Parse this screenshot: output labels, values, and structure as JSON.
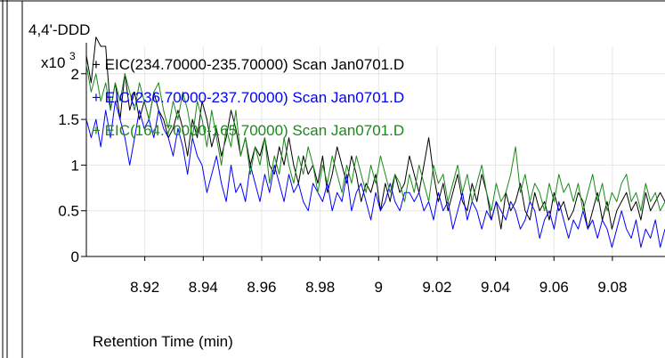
{
  "chart_data": {
    "type": "line",
    "title": "4,4'-DDD",
    "xlabel": "Retention Time (min)",
    "ylabel": "",
    "y_multiplier_label": "x10",
    "y_multiplier_exp": "3",
    "xlim": [
      8.9,
      9.098
    ],
    "ylim": [
      0,
      2.3
    ],
    "xticks": [
      "8.92",
      "8.94",
      "8.96",
      "8.98",
      "9",
      "9.02",
      "9.04",
      "9.06",
      "9.08"
    ],
    "xtick_values": [
      8.92,
      8.94,
      8.96,
      8.98,
      9.0,
      9.02,
      9.04,
      9.06,
      9.08
    ],
    "yticks": [
      "0",
      "0.5",
      "1",
      "1.5",
      "2"
    ],
    "ytick_values": [
      0,
      0.5,
      1,
      1.5,
      2
    ],
    "grid": true,
    "legend_position": "top-left",
    "series": [
      {
        "name": "+ EIC(234.70000-235.70000) Scan Jan0701.D",
        "color": "#000000",
        "x_start": 8.9,
        "x_step": 0.00165,
        "values": [
          2.2,
          1.9,
          2.4,
          2.3,
          2.3,
          1.6,
          1.9,
          1.5,
          2.0,
          1.6,
          1.8,
          1.5,
          1.7,
          1.5,
          1.8,
          1.6,
          1.5,
          1.3,
          1.4,
          1.6,
          1.4,
          1.1,
          1.5,
          1.3,
          1.7,
          1.5,
          1.2,
          1.4,
          1.1,
          1.3,
          1.6,
          1.4,
          1.1,
          1.3,
          1.0,
          1.2,
          1.1,
          1.3,
          1.0,
          0.9,
          1.2,
          1.0,
          1.3,
          1.0,
          0.8,
          1.1,
          0.9,
          1.0,
          0.8,
          1.1,
          0.7,
          0.9,
          1.2,
          1.0,
          0.8,
          1.1,
          0.9,
          0.6,
          0.8,
          0.7,
          0.9,
          0.5,
          0.8,
          0.6,
          0.9,
          0.7,
          0.8,
          1.1,
          0.9,
          0.7,
          1.0,
          1.3,
          0.9,
          0.6,
          0.8,
          0.5,
          0.7,
          0.9,
          0.6,
          0.5,
          0.8,
          0.6,
          0.9,
          0.7,
          0.4,
          0.6,
          0.3,
          0.7,
          0.5,
          0.6,
          0.8,
          0.5,
          0.4,
          0.7,
          0.5,
          0.6,
          0.4,
          0.7,
          0.5,
          0.6,
          0.4,
          0.5,
          0.7,
          0.6,
          0.3,
          0.5,
          0.7,
          0.4,
          0.6,
          0.3,
          0.5,
          0.6,
          0.7,
          0.5,
          0.6,
          0.4,
          0.7,
          0.5,
          0.6,
          0.7,
          0.6
        ]
      },
      {
        "name": "+ EIC(236.70000-237.70000) Scan Jan0701.D",
        "color": "#0000ff",
        "x_start": 8.9,
        "x_step": 0.00165,
        "values": [
          1.5,
          1.3,
          1.5,
          1.2,
          1.6,
          1.3,
          1.7,
          1.5,
          1.3,
          1.0,
          1.3,
          1.6,
          1.4,
          1.5,
          1.3,
          1.6,
          1.4,
          1.3,
          1.1,
          1.4,
          1.2,
          0.9,
          1.3,
          1.1,
          1.0,
          0.7,
          0.9,
          1.1,
          0.8,
          0.6,
          1.0,
          0.7,
          0.8,
          0.6,
          1.0,
          0.8,
          0.6,
          0.9,
          0.7,
          1.0,
          0.8,
          0.6,
          0.9,
          0.7,
          0.8,
          0.6,
          0.5,
          0.8,
          0.7,
          0.6,
          0.8,
          0.5,
          0.7,
          0.6,
          0.9,
          0.5,
          0.7,
          0.8,
          0.6,
          0.4,
          0.7,
          0.5,
          0.6,
          0.8,
          0.6,
          0.5,
          0.7,
          0.7,
          0.6,
          0.7,
          0.5,
          0.6,
          0.4,
          0.7,
          0.5,
          0.6,
          0.3,
          0.5,
          0.7,
          0.4,
          0.6,
          0.5,
          0.3,
          0.5,
          0.4,
          0.6,
          0.5,
          0.4,
          0.6,
          0.5,
          0.3,
          0.4,
          0.6,
          0.5,
          0.2,
          0.4,
          0.5,
          0.3,
          0.6,
          0.4,
          0.2,
          0.4,
          0.3,
          0.5,
          0.3,
          0.4,
          0.2,
          0.4,
          0.3,
          0.1,
          0.3,
          0.5,
          0.3,
          0.2,
          0.4,
          0.1,
          0.3,
          0.2,
          0.4,
          0.1,
          0.3
        ]
      },
      {
        "name": "+ EIC(164.70000-165.70000) Scan Jan0701.D",
        "color": "#1a8a1a",
        "x_start": 8.9,
        "x_step": 0.00165,
        "values": [
          2.1,
          1.8,
          2.0,
          1.7,
          1.9,
          1.6,
          1.9,
          1.7,
          2.0,
          1.8,
          1.6,
          1.9,
          1.7,
          1.5,
          1.8,
          1.9,
          1.6,
          1.4,
          1.7,
          1.5,
          1.8,
          1.6,
          1.3,
          1.7,
          1.5,
          1.2,
          1.6,
          1.3,
          1.0,
          1.4,
          1.2,
          1.6,
          1.1,
          1.3,
          0.9,
          1.2,
          1.0,
          1.3,
          0.8,
          1.1,
          0.9,
          1.3,
          1.0,
          0.8,
          1.1,
          0.9,
          1.2,
          1.0,
          0.7,
          1.0,
          0.8,
          1.1,
          0.9,
          0.7,
          1.0,
          0.8,
          1.1,
          0.9,
          0.7,
          1.0,
          0.8,
          1.1,
          0.9,
          0.7,
          0.9,
          0.8,
          0.6,
          0.9,
          0.7,
          1.0,
          0.8,
          0.6,
          1.0,
          0.8,
          0.9,
          0.6,
          0.8,
          1.0,
          0.7,
          0.9,
          0.6,
          0.8,
          1.0,
          0.7,
          0.5,
          0.8,
          0.6,
          0.7,
          0.9,
          1.2,
          0.7,
          0.9,
          0.6,
          0.8,
          0.7,
          0.5,
          0.8,
          0.6,
          0.9,
          0.7,
          0.8,
          0.6,
          0.8,
          0.5,
          0.7,
          0.9,
          0.6,
          0.8,
          0.5,
          0.7,
          0.6,
          0.8,
          0.9,
          0.6,
          0.7,
          0.5,
          0.8,
          0.6,
          0.7,
          0.5,
          0.6
        ]
      }
    ]
  }
}
